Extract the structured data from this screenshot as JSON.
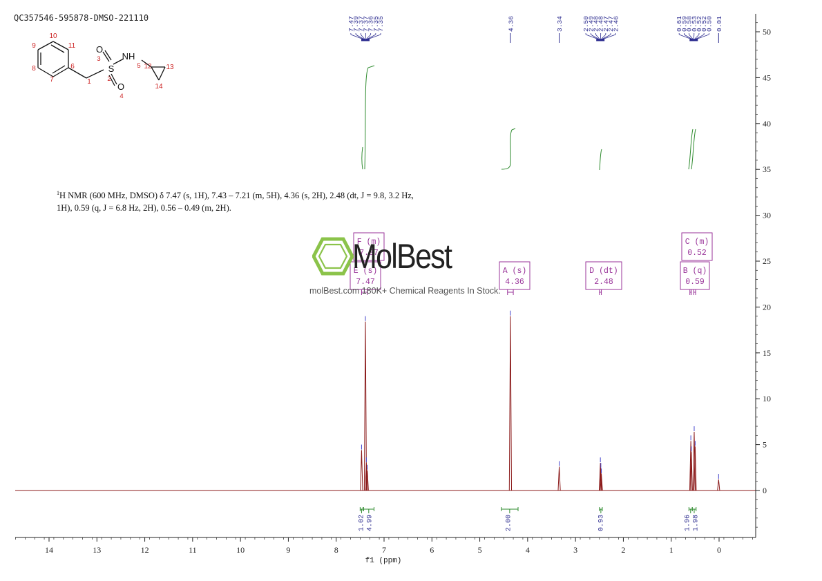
{
  "sample_id": "QC357546-595878-DMSO-221110",
  "nmr_description": {
    "sup": "1",
    "line1": "H NMR (600 MHz, DMSO) δ 7.47 (s, 1H), 7.43 – 7.21 (m, 5H), 4.36 (s, 2H), 2.48 (dt, J = 9.8, 3.2 Hz,",
    "line2": "1H), 0.59 (q, J = 6.8 Hz, 2H), 0.56 – 0.49 (m, 2H)."
  },
  "watermark": {
    "brand": "MolBest",
    "tagline": "molBest.com 180K+ Chemical Reagents In Stock."
  },
  "structure": {
    "atoms": [
      {
        "label": "O",
        "num": "3"
      },
      {
        "label": "S",
        "num": "2"
      },
      {
        "label": "NH",
        "num": "5"
      },
      {
        "label": "O",
        "num": "4"
      }
    ],
    "carbon_numbers": [
      "1",
      "6",
      "7",
      "8",
      "9",
      "10",
      "11",
      "12",
      "13",
      "14"
    ]
  },
  "colors": {
    "spectrum": "#8b1a1a",
    "peak_labels": "#2a2a8e",
    "integral": "#2e8b2e",
    "multiplet_box": "#993399",
    "axis": "#222222",
    "atom_number": "#cc2222",
    "watermark_green": "#8bc34a"
  },
  "chart_data": {
    "type": "line",
    "title": "",
    "xlabel": "f1 (ppm)",
    "ylabel": "",
    "x_reversed": true,
    "xlim": [
      14.75,
      -0.75
    ],
    "ylim": [
      -5,
      52
    ],
    "x_ticks": [
      14,
      13,
      12,
      11,
      10,
      9,
      8,
      7,
      6,
      5,
      4,
      3,
      2,
      1,
      0
    ],
    "y_ticks": [
      50,
      45,
      40,
      35,
      30,
      25,
      20,
      15,
      10,
      5,
      0
    ],
    "peaks": [
      {
        "ppm": 7.47,
        "height": 4.4
      },
      {
        "ppm": 7.39,
        "height": 18.4
      },
      {
        "ppm": 7.37,
        "height": 3.0
      },
      {
        "ppm": 7.35,
        "height": 2.2
      },
      {
        "ppm": 4.36,
        "height": 19.0
      },
      {
        "ppm": 3.34,
        "height": 2.6
      },
      {
        "ppm": 2.48,
        "height": 3.0
      },
      {
        "ppm": 2.47,
        "height": 2.4
      },
      {
        "ppm": 2.46,
        "height": 1.8
      },
      {
        "ppm": 0.59,
        "height": 5.4
      },
      {
        "ppm": 0.58,
        "height": 4.2
      },
      {
        "ppm": 0.52,
        "height": 6.4
      },
      {
        "ppm": 0.5,
        "height": 4.8
      },
      {
        "ppm": 0.01,
        "height": 1.2
      }
    ],
    "peak_labels": [
      {
        "group_x": 7.39,
        "labels": [
          "7.47",
          "7.39",
          "7.37",
          "7.37",
          "7.36",
          "7.35",
          "7.35"
        ]
      },
      {
        "group_x": 4.36,
        "labels": [
          "4.36"
        ]
      },
      {
        "group_x": 3.34,
        "labels": [
          "3.34"
        ]
      },
      {
        "group_x": 2.48,
        "labels": [
          "2.50",
          "2.49",
          "2.48",
          "2.48",
          "2.47",
          "2.47",
          "2.46"
        ]
      },
      {
        "group_x": 0.53,
        "labels": [
          "0.61",
          "0.59",
          "0.58",
          "0.53",
          "0.52",
          "0.52",
          "0.50"
        ]
      },
      {
        "group_x": 0.01,
        "labels": [
          "0.01"
        ]
      }
    ],
    "integrals": [
      {
        "from": 7.5,
        "to": 7.44,
        "value": "1.02"
      },
      {
        "from": 7.43,
        "to": 7.21,
        "value": "4.99"
      },
      {
        "from": 4.55,
        "to": 4.2,
        "value": "2.00"
      },
      {
        "from": 2.5,
        "to": 2.44,
        "value": "0.93"
      },
      {
        "from": 0.63,
        "to": 0.56,
        "value": "1.96"
      },
      {
        "from": 0.56,
        "to": 0.48,
        "value": "1.98"
      }
    ],
    "multiplets": [
      {
        "letter": "F",
        "type": "m",
        "shift": "7.37"
      },
      {
        "letter": "E",
        "type": "s",
        "shift": "7.47"
      },
      {
        "letter": "A",
        "type": "s",
        "shift": "4.36"
      },
      {
        "letter": "D",
        "type": "dt",
        "shift": "2.48"
      },
      {
        "letter": "C",
        "type": "m",
        "shift": "0.52"
      },
      {
        "letter": "B",
        "type": "q",
        "shift": "0.59"
      }
    ]
  }
}
